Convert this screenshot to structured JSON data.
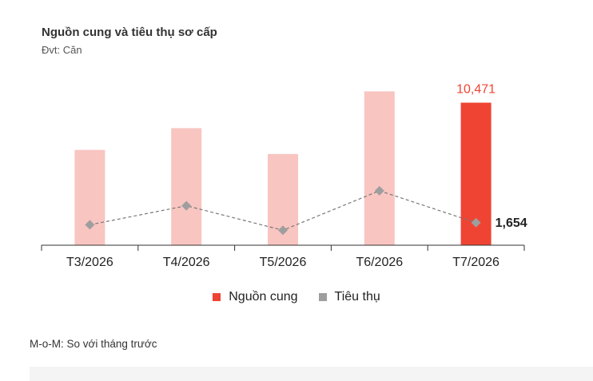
{
  "chart_data": {
    "type": "bar",
    "title": "Nguồn cung và tiêu thụ sơ cấp",
    "subtitle": "Đvt: Căn",
    "categories": [
      "T3/2026",
      "T4/2026",
      "T5/2026",
      "T6/2026",
      "T7/2026"
    ],
    "ylim": [
      0,
      11500
    ],
    "series": [
      {
        "name": "Nguồn cung",
        "type": "bar",
        "values": [
          7000,
          8600,
          6700,
          11300,
          10471
        ],
        "color": "#f8c5c1",
        "highlight_color": "#ef4433",
        "highlight_index": 4,
        "data_labels": [
          null,
          null,
          null,
          null,
          "10,471"
        ],
        "data_label_color": "#ef4433"
      },
      {
        "name": "Tiêu thụ",
        "type": "line",
        "values": [
          1500,
          2900,
          1100,
          4000,
          1654
        ],
        "color": "#9e9e9e",
        "data_labels": [
          null,
          null,
          null,
          null,
          "1,654"
        ],
        "data_label_color": "#222222"
      }
    ],
    "grid": false,
    "legend_position": "bottom-center"
  },
  "legend": [
    {
      "label": "Nguồn cung",
      "color": "#ef4433"
    },
    {
      "label": "Tiêu thụ",
      "color": "#9e9e9e"
    }
  ],
  "footnote": "M-o-M: So với tháng trước"
}
